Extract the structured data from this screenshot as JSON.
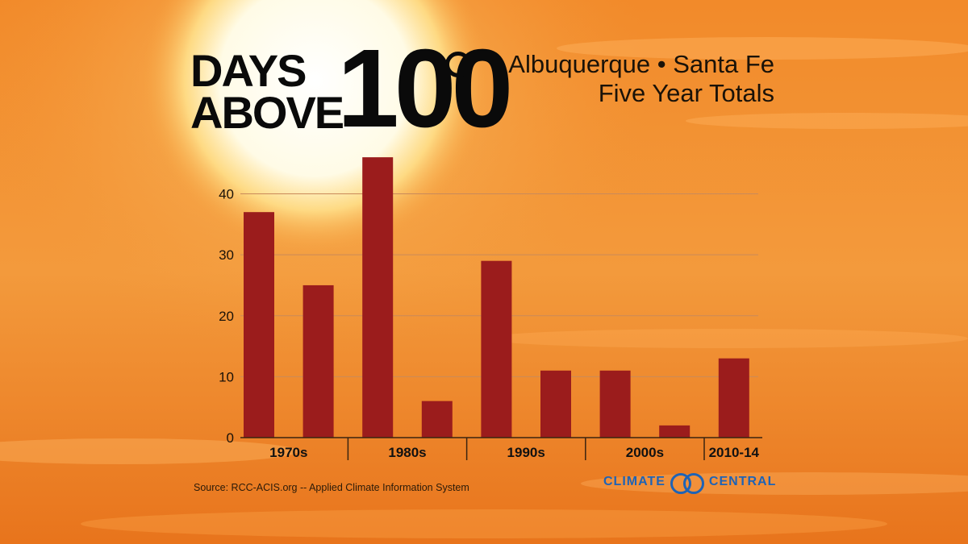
{
  "title": {
    "line1": "DAYS",
    "line2": "ABOVE",
    "number": "100"
  },
  "subtitle": {
    "line1": "Albuquerque • Santa Fe",
    "line2": "Five Year Totals"
  },
  "source": "Source: RCC-ACIS.org -- Applied Climate Information System",
  "logo": {
    "left_text": "CLIMATE",
    "right_text": "CENTRAL",
    "color": "#1f63b5"
  },
  "colors": {
    "bar": "#9b1c1c",
    "gridline": "#c98a5a",
    "axis": "#3a2410"
  },
  "chart_data": {
    "type": "bar",
    "title": "",
    "xlabel": "",
    "ylabel": "",
    "ylim": [
      0,
      48
    ],
    "yticks": [
      0,
      10,
      20,
      30,
      40
    ],
    "grid": true,
    "groups": [
      {
        "label": "1970s",
        "values": [
          37,
          25
        ]
      },
      {
        "label": "1980s",
        "values": [
          46,
          6
        ]
      },
      {
        "label": "1990s",
        "values": [
          29,
          11
        ]
      },
      {
        "label": "2000s",
        "values": [
          11,
          2
        ]
      },
      {
        "label": "2010-14",
        "values": [
          13
        ]
      }
    ]
  }
}
